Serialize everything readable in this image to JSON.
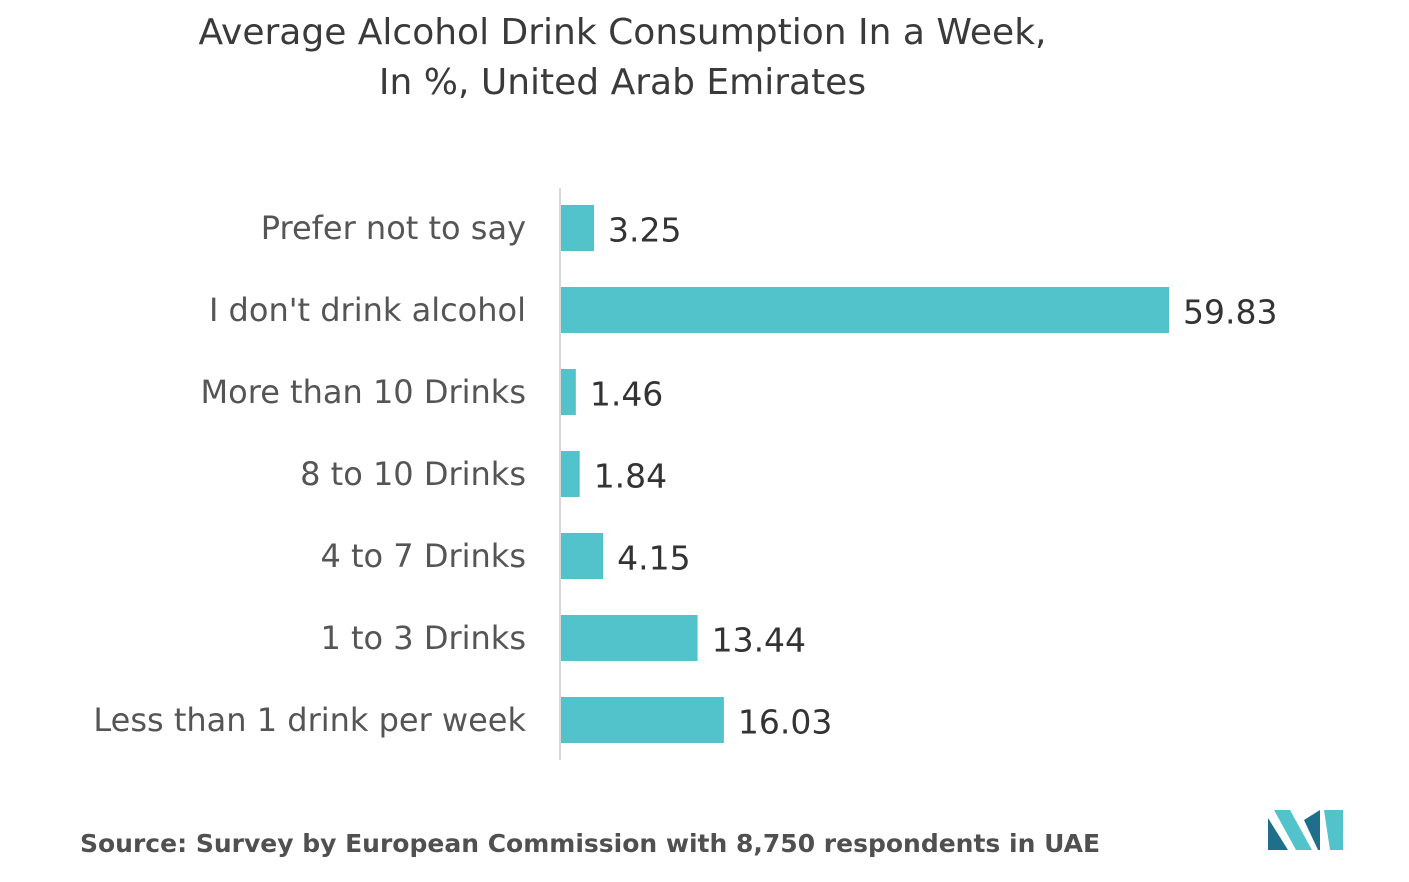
{
  "title_line1": "Average Alcohol Drink Consumption In a Week,",
  "title_line2": "In %, United Arab Emirates",
  "source_label": "Source:",
  "source_text": "Survey by European Commission with 8,750 respondents in UAE",
  "colors": {
    "bar": "#52C3CB",
    "text": "#4a4a4a",
    "axis": "#cccccc",
    "logo_dark": "#1f6f8b",
    "logo_light": "#52C3CB"
  },
  "chart_data": {
    "type": "bar",
    "orientation": "horizontal",
    "categories": [
      "Prefer not to say",
      "I don't drink alcohol",
      "More than 10 Drinks",
      "8 to 10 Drinks",
      "4 to 7 Drinks",
      "1 to 3 Drinks",
      "Less than 1 drink per week"
    ],
    "values": [
      3.25,
      59.83,
      1.46,
      1.84,
      4.15,
      13.44,
      16.03
    ],
    "value_labels": [
      "3.25",
      "59.83",
      "1.46",
      "1.84",
      "4.15",
      "13.44",
      "16.03"
    ],
    "title": "Average Alcohol Drink Consumption In a Week, In %, United Arab Emirates",
    "xlim": [
      0,
      60
    ],
    "grid": false,
    "legend": "none"
  }
}
